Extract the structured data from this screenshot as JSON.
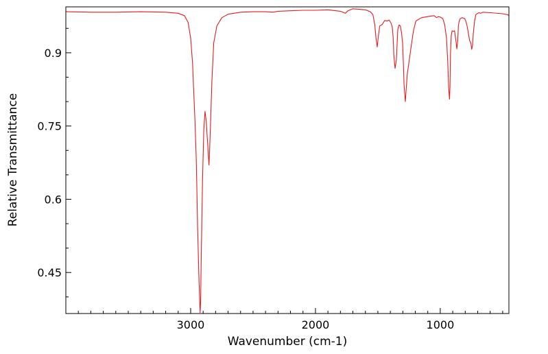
{
  "chart_data": {
    "type": "line",
    "xlabel": "Wavenumber (cm-1)",
    "ylabel": "Relative Transmittance",
    "xlim": [
      4000,
      450
    ],
    "ylim": [
      0.366,
      0.994
    ],
    "x_reversed": true,
    "x_ticks": [
      3000,
      2000,
      1000
    ],
    "x_tick_labels": [
      "3000",
      "2000",
      "1000"
    ],
    "y_ticks": [
      0.9,
      0.75,
      0.6,
      0.45
    ],
    "y_tick_labels": [
      "0.9",
      "0.75",
      "0.6",
      "0.45"
    ],
    "grid": false,
    "legend": "none",
    "series": [
      {
        "color": "#e8191b",
        "x": [
          4000,
          3800,
          3600,
          3400,
          3200,
          3100,
          3050,
          3020,
          3000,
          2985,
          2975,
          2965,
          2955,
          2945,
          2935,
          2928,
          2924,
          2920,
          2915,
          2905,
          2895,
          2885,
          2875,
          2865,
          2858,
          2853,
          2848,
          2840,
          2830,
          2815,
          2790,
          2750,
          2700,
          2600,
          2500,
          2400,
          2340,
          2300,
          2200,
          2100,
          2000,
          1900,
          1800,
          1760,
          1740,
          1700,
          1600,
          1560,
          1540,
          1525,
          1515,
          1505,
          1495,
          1485,
          1465,
          1445,
          1425,
          1410,
          1395,
          1385,
          1377,
          1372,
          1362,
          1352,
          1340,
          1330,
          1320,
          1310,
          1302,
          1296,
          1290,
          1280,
          1265,
          1250,
          1235,
          1215,
          1195,
          1150,
          1100,
          1050,
          1030,
          1015,
          1000,
          980,
          965,
          950,
          940,
          932,
          926,
          922,
          918,
          912,
          905,
          895,
          885,
          875,
          867,
          860,
          855,
          848,
          840,
          825,
          805,
          795,
          785,
          775,
          765,
          755,
          748,
          742,
          735,
          725,
          715,
          705,
          690,
          675,
          660,
          600,
          500,
          460,
          450
        ],
        "y": [
          0.984,
          0.983,
          0.983,
          0.984,
          0.983,
          0.981,
          0.976,
          0.962,
          0.93,
          0.88,
          0.82,
          0.76,
          0.68,
          0.55,
          0.45,
          0.395,
          0.368,
          0.39,
          0.48,
          0.64,
          0.74,
          0.78,
          0.76,
          0.72,
          0.69,
          0.67,
          0.7,
          0.76,
          0.84,
          0.92,
          0.955,
          0.972,
          0.979,
          0.983,
          0.984,
          0.984,
          0.983,
          0.985,
          0.986,
          0.987,
          0.987,
          0.988,
          0.985,
          0.981,
          0.986,
          0.99,
          0.988,
          0.984,
          0.978,
          0.958,
          0.93,
          0.912,
          0.935,
          0.955,
          0.958,
          0.966,
          0.965,
          0.967,
          0.961,
          0.953,
          0.93,
          0.895,
          0.868,
          0.885,
          0.948,
          0.957,
          0.955,
          0.94,
          0.92,
          0.88,
          0.835,
          0.8,
          0.855,
          0.882,
          0.91,
          0.945,
          0.965,
          0.972,
          0.974,
          0.976,
          0.972,
          0.974,
          0.973,
          0.97,
          0.958,
          0.93,
          0.882,
          0.825,
          0.805,
          0.83,
          0.898,
          0.935,
          0.945,
          0.944,
          0.945,
          0.925,
          0.908,
          0.925,
          0.955,
          0.965,
          0.97,
          0.972,
          0.97,
          0.965,
          0.955,
          0.94,
          0.925,
          0.92,
          0.907,
          0.915,
          0.94,
          0.965,
          0.978,
          0.98,
          0.982,
          0.981,
          0.983,
          0.982,
          0.98,
          0.978,
          0.976
        ]
      }
    ]
  }
}
